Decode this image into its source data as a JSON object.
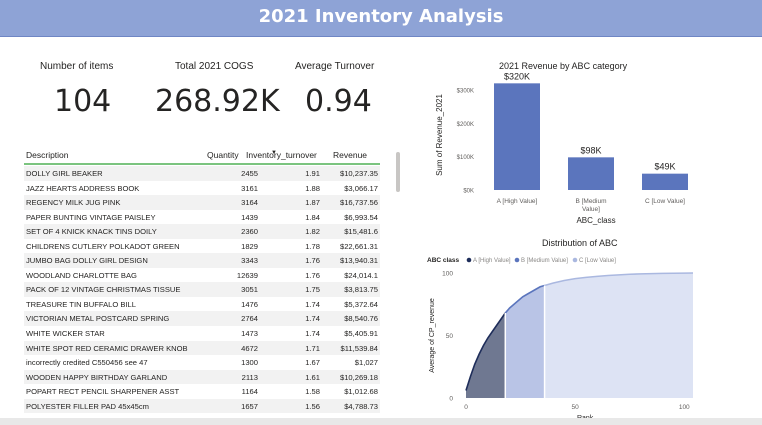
{
  "page": {
    "title": "2021 Inventory Analysis"
  },
  "kpis": [
    {
      "label": "Number of items",
      "value": "104"
    },
    {
      "label": "Total 2021 COGS",
      "value": "268.92K"
    },
    {
      "label": "Average Turnover",
      "value": "0.94"
    }
  ],
  "table": {
    "columns": [
      "Description",
      "Quantity",
      "Inventory_turnover",
      "Revenue"
    ],
    "sort_icon": "sort-descending-icon",
    "rows": [
      [
        "DOLLY GIRL BEAKER",
        "2455",
        "1.91",
        "$10,237.35"
      ],
      [
        "JAZZ HEARTS ADDRESS BOOK",
        "3161",
        "1.88",
        "$3,066.17"
      ],
      [
        "REGENCY MILK JUG PINK",
        "3164",
        "1.87",
        "$16,737.56"
      ],
      [
        "PAPER BUNTING VINTAGE PAISLEY",
        "1439",
        "1.84",
        "$6,993.54"
      ],
      [
        "SET OF 4 KNICK KNACK TINS DOILY",
        "2360",
        "1.82",
        "$15,481.6"
      ],
      [
        "CHILDRENS CUTLERY POLKADOT GREEN",
        "1829",
        "1.78",
        "$22,661.31"
      ],
      [
        "JUMBO BAG DOLLY GIRL DESIGN",
        "3343",
        "1.76",
        "$13,940.31"
      ],
      [
        "WOODLAND CHARLOTTE BAG",
        "12639",
        "1.76",
        "$24,014.1"
      ],
      [
        "PACK OF 12 VINTAGE CHRISTMAS TISSUE",
        "3051",
        "1.75",
        "$3,813.75"
      ],
      [
        "TREASURE TIN BUFFALO BILL",
        "1476",
        "1.74",
        "$5,372.64"
      ],
      [
        "VICTORIAN METAL POSTCARD SPRING",
        "2764",
        "1.74",
        "$8,540.76"
      ],
      [
        "WHITE WICKER STAR",
        "1473",
        "1.74",
        "$5,405.91"
      ],
      [
        "WHITE SPOT RED CERAMIC DRAWER KNOB",
        "4672",
        "1.71",
        "$11,539.84"
      ],
      [
        "incorrectly credited C550456 see 47",
        "1300",
        "1.67",
        "$1,027"
      ],
      [
        "WOODEN HAPPY BIRTHDAY GARLAND",
        "2113",
        "1.61",
        "$10,269.18"
      ],
      [
        "POPART RECT PENCIL SHARPENER ASST",
        "1164",
        "1.58",
        "$1,012.68"
      ],
      [
        "POLYESTER FILLER PAD 45x45cm",
        "1657",
        "1.56",
        "$4,788.73"
      ]
    ]
  },
  "colors": {
    "title_bg": "#8ea3d6",
    "bar": "#5b75bd",
    "class_a": "#1e2d5a",
    "class_b": "#5b75bd",
    "class_c": "#aab8e0",
    "table_accent": "#7bc47f"
  },
  "bar_chart": {
    "title": "2021 Revenue by ABC category",
    "ylabel": "Sum of Revenue_2021",
    "xlabel": "ABC_class",
    "ticks": [
      "$0K",
      "$100K",
      "$200K",
      "$300K"
    ],
    "tick_values": [
      0,
      100,
      200,
      300
    ],
    "ylim": [
      0,
      330
    ],
    "categories": [
      {
        "lines": [
          "A [High Value]"
        ],
        "data_label": "$320K",
        "value": 320
      },
      {
        "lines": [
          "B [Medium",
          "Value]"
        ],
        "data_label": "$98K",
        "value": 98
      },
      {
        "lines": [
          "C [Low Value]"
        ],
        "data_label": "$49K",
        "value": 49
      }
    ]
  },
  "area_chart": {
    "title": "Distribution of ABC",
    "legend_title": "ABC class",
    "legend": [
      "A [High Value]",
      "B [Medium Value]",
      "C [Low Value]"
    ],
    "ylabel": "Average of CP_revenue",
    "xlabel": "Rank",
    "x_ticks": [
      "0",
      "50",
      "100"
    ],
    "x_tick_values": [
      0,
      50,
      100
    ],
    "y_ticks": [
      "0",
      "50",
      "100"
    ],
    "y_tick_values": [
      0,
      50,
      100
    ],
    "xlim": [
      0,
      104
    ],
    "ylim": [
      0,
      100
    ],
    "class_ends": [
      18,
      36,
      104
    ],
    "points": [
      [
        0,
        6
      ],
      [
        2,
        17
      ],
      [
        4,
        27
      ],
      [
        6,
        35
      ],
      [
        8,
        42
      ],
      [
        10,
        48
      ],
      [
        12,
        53
      ],
      [
        14,
        58
      ],
      [
        16,
        63
      ],
      [
        18,
        68
      ],
      [
        20,
        72
      ],
      [
        22,
        75
      ],
      [
        24,
        78
      ],
      [
        26,
        81
      ],
      [
        28,
        83
      ],
      [
        30,
        85
      ],
      [
        32,
        87
      ],
      [
        34,
        89
      ],
      [
        36,
        90
      ],
      [
        40,
        92
      ],
      [
        45,
        94
      ],
      [
        50,
        95.5
      ],
      [
        55,
        96.5
      ],
      [
        60,
        97.3
      ],
      [
        65,
        98
      ],
      [
        70,
        98.5
      ],
      [
        75,
        99
      ],
      [
        80,
        99.3
      ],
      [
        85,
        99.5
      ],
      [
        90,
        99.7
      ],
      [
        95,
        99.8
      ],
      [
        100,
        99.9
      ],
      [
        104,
        100
      ]
    ]
  }
}
